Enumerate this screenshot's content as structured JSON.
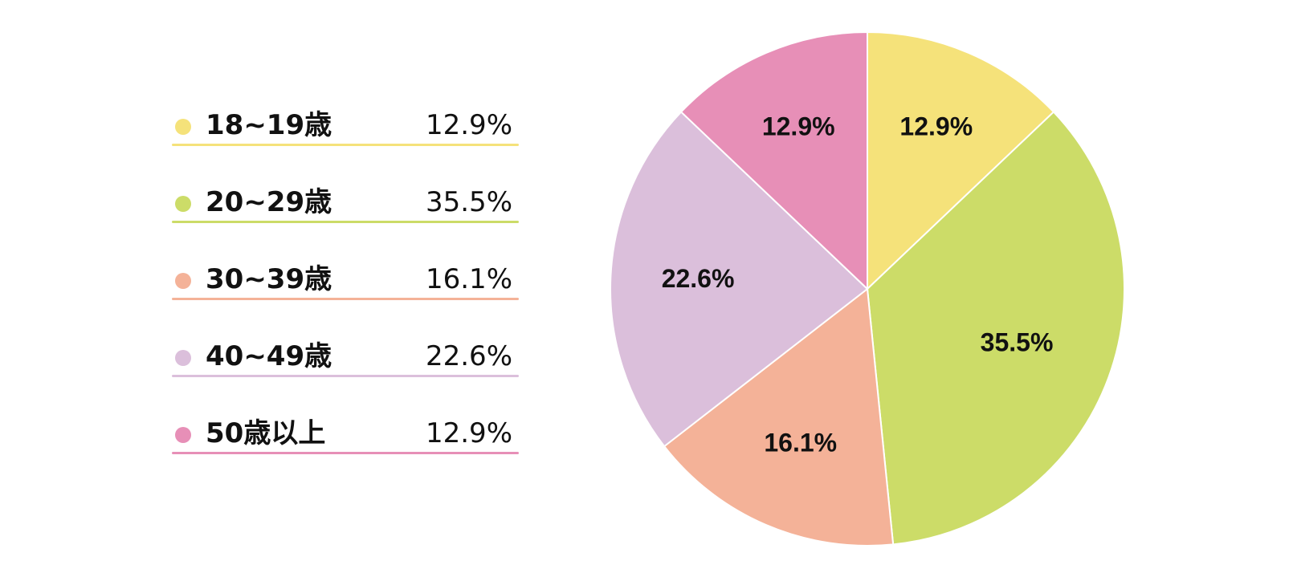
{
  "chart_data": {
    "type": "pie",
    "categories": [
      "18~19歳",
      "20~29歳",
      "30~39歳",
      "40~49歳",
      "50歳以上"
    ],
    "values": [
      12.9,
      35.5,
      16.1,
      22.6,
      12.9
    ],
    "value_labels": [
      "12.9%",
      "35.5%",
      "16.1%",
      "22.6%",
      "12.9%"
    ],
    "colors": [
      "#F5E27A",
      "#CCDC68",
      "#F4B298",
      "#DBBFDB",
      "#E78FB7"
    ],
    "start_angle_deg": 0,
    "direction": "clockwise",
    "legend_placement": "left"
  },
  "legend": [
    {
      "label": "18~19歳",
      "value": "12.9%"
    },
    {
      "label": "20~29歳",
      "value": "35.5%"
    },
    {
      "label": "30~39歳",
      "value": "16.1%"
    },
    {
      "label": "40~49歳",
      "value": "22.6%"
    },
    {
      "label": "50歳以上",
      "value": "12.9%"
    }
  ]
}
